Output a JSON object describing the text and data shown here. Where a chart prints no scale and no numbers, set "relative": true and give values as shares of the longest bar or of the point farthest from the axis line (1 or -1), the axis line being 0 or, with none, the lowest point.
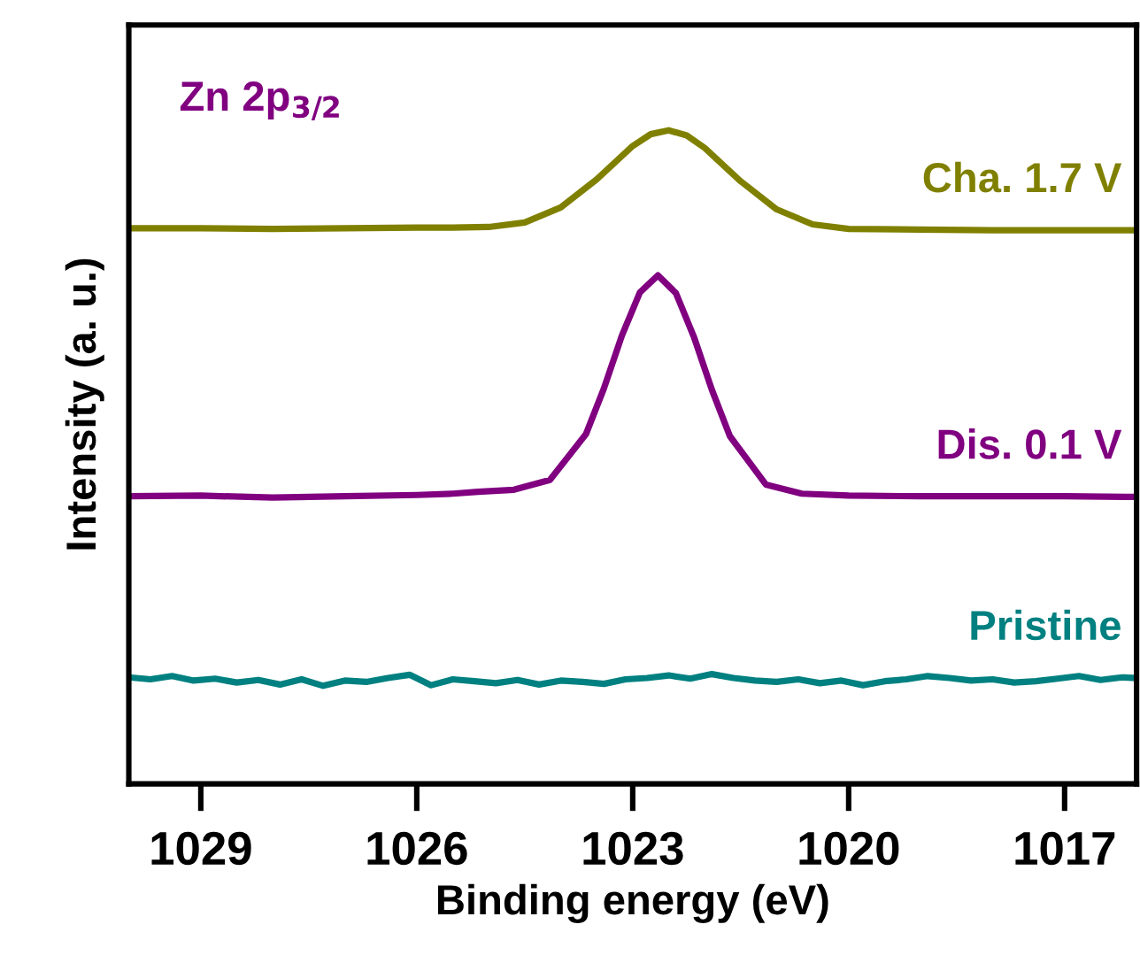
{
  "chart_data": {
    "type": "line",
    "relative": true,
    "xlabel": "Binding energy (eV)",
    "ylabel": "Intensity (a. u.)",
    "annotations": [
      "Zn 2p$_{3/2}$"
    ],
    "xlim": [
      1030,
      1016
    ],
    "xticks": [
      1029,
      1026,
      1023,
      1020,
      1017
    ],
    "grid": false,
    "legend": false,
    "marker": "none",
    "line_style": "solid",
    "series": [
      {
        "name": "Cha. 1.7 V",
        "color": "#808000",
        "x": [
          1030,
          1029,
          1028,
          1027,
          1026,
          1025.5,
          1025,
          1024.5,
          1024,
          1023.5,
          1023,
          1022.75,
          1022.5,
          1022.25,
          1022,
          1021.5,
          1021,
          1020.5,
          1020,
          1019,
          1018,
          1017,
          1016
        ],
        "values": [
          0.85,
          0.85,
          0.849,
          0.85,
          0.851,
          0.851,
          0.852,
          0.859,
          0.882,
          0.925,
          0.976,
          0.994,
          1.0,
          0.992,
          0.973,
          0.922,
          0.879,
          0.856,
          0.849,
          0.848,
          0.847,
          0.847,
          0.847
        ]
      },
      {
        "name": "Dis. 0.1 V",
        "color": "#800080",
        "x": [
          1030,
          1029,
          1028,
          1027,
          1026,
          1025.5,
          1025.15,
          1024.65,
          1024.15,
          1023.65,
          1023.4,
          1023.15,
          1022.9,
          1022.65,
          1022.4,
          1022.15,
          1021.9,
          1021.65,
          1021.15,
          1020.65,
          1020,
          1019,
          1018,
          1017,
          1016
        ],
        "values": [
          0.44,
          0.441,
          0.438,
          0.44,
          0.442,
          0.444,
          0.447,
          0.45,
          0.465,
          0.535,
          0.605,
          0.686,
          0.752,
          0.778,
          0.751,
          0.684,
          0.603,
          0.532,
          0.458,
          0.444,
          0.441,
          0.44,
          0.44,
          0.44,
          0.439
        ]
      },
      {
        "name": "Pristine",
        "color": "#008080",
        "x": [
          1030,
          1029.7,
          1029.4,
          1029.1,
          1028.8,
          1028.5,
          1028.2,
          1027.9,
          1027.6,
          1027.3,
          1027.0,
          1026.7,
          1026.4,
          1026.1,
          1025.8,
          1025.5,
          1025.2,
          1024.9,
          1024.6,
          1024.3,
          1024.0,
          1023.7,
          1023.4,
          1023.1,
          1022.8,
          1022.5,
          1022.2,
          1021.9,
          1021.6,
          1021.3,
          1021.0,
          1020.7,
          1020.4,
          1020.1,
          1019.8,
          1019.5,
          1019.2,
          1018.9,
          1018.6,
          1018.3,
          1018.0,
          1017.7,
          1017.4,
          1017.1,
          1016.8,
          1016.5,
          1016.2,
          1016
        ],
        "values": [
          0.163,
          0.16,
          0.165,
          0.158,
          0.161,
          0.155,
          0.159,
          0.152,
          0.16,
          0.15,
          0.158,
          0.156,
          0.162,
          0.167,
          0.151,
          0.16,
          0.157,
          0.154,
          0.159,
          0.152,
          0.158,
          0.156,
          0.153,
          0.16,
          0.162,
          0.166,
          0.161,
          0.168,
          0.162,
          0.158,
          0.156,
          0.16,
          0.154,
          0.158,
          0.151,
          0.157,
          0.16,
          0.165,
          0.162,
          0.158,
          0.16,
          0.155,
          0.157,
          0.161,
          0.165,
          0.159,
          0.163,
          0.162
        ]
      }
    ]
  }
}
